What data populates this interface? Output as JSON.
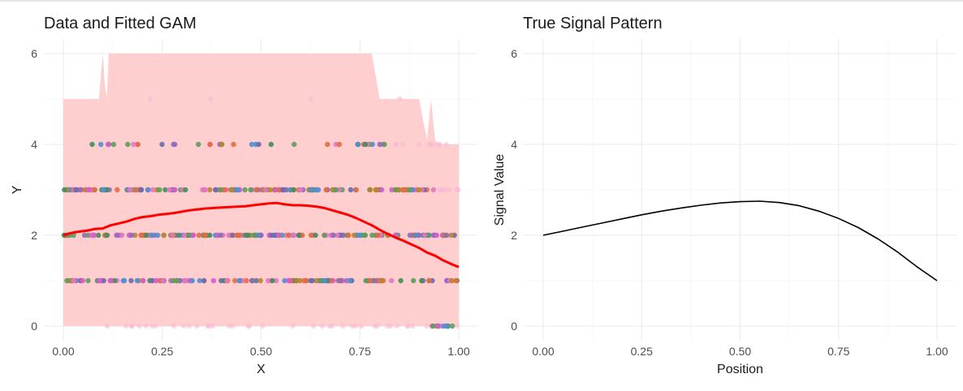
{
  "chart_data": [
    {
      "type": "scatter",
      "title": "Data and Fitted GAM",
      "xlabel": "X",
      "ylabel": "Y",
      "xlim": [
        0,
        1
      ],
      "ylim": [
        0,
        6
      ],
      "x_ticks": [
        "0.00",
        "0.25",
        "0.50",
        "0.75",
        "1.00"
      ],
      "y_ticks": [
        "0",
        "2",
        "4",
        "6"
      ],
      "grid": true,
      "legend": "none",
      "colors": {
        "fit_line": "#ff0000",
        "band": "#ffcccc"
      },
      "point_palette": [
        "#4e8fd4",
        "#d95ccb",
        "#5a9e5a",
        "#e76b3d",
        "#3f8f5c",
        "#b8862b",
        "#8e6bbf",
        "#e377c2",
        "#6a6ab0"
      ],
      "point_levels": [
        {
          "y": 0,
          "n": 40,
          "x_range": [
            0.0,
            1.0
          ],
          "faint": true
        },
        {
          "y": 0,
          "n": 14,
          "x_range": [
            0.91,
            1.0
          ],
          "faint": false
        },
        {
          "y": 1,
          "n": 150,
          "x_range": [
            0.0,
            1.0
          ],
          "faint": false
        },
        {
          "y": 2,
          "n": 180,
          "x_range": [
            0.0,
            1.0
          ],
          "faint": false
        },
        {
          "y": 3,
          "n": 170,
          "x_range": [
            0.0,
            0.94
          ],
          "faint": false
        },
        {
          "y": 3,
          "n": 10,
          "x_range": [
            0.94,
            1.0
          ],
          "faint": true
        },
        {
          "y": 4,
          "n": 38,
          "x_range": [
            0.05,
            0.84
          ],
          "faint": false
        },
        {
          "y": 4,
          "n": 10,
          "x_range": [
            0.84,
            0.98
          ],
          "faint": true
        },
        {
          "y": 5,
          "n": 4,
          "x_range": [
            0.0,
            0.9
          ],
          "faint": true
        }
      ],
      "series": [
        {
          "type": "band",
          "x": [
            0.0,
            0.09,
            0.1,
            0.105,
            0.11,
            0.115,
            0.12,
            0.125,
            0.78,
            0.8,
            0.81,
            0.9,
            0.91,
            0.92,
            0.93,
            0.94,
            0.95,
            1.0
          ],
          "lower": [
            0,
            0,
            0,
            0,
            0,
            0,
            0,
            0,
            0,
            0,
            0,
            0,
            0,
            0,
            0,
            0,
            0,
            0
          ],
          "upper": [
            5.0,
            5.0,
            6.0,
            5.3,
            5.0,
            6.0,
            6.0,
            6.0,
            6.0,
            5.0,
            5.0,
            5.0,
            4.5,
            4.1,
            5.0,
            4.1,
            4.0,
            4.0
          ]
        },
        {
          "type": "line",
          "x": [
            0.0,
            0.02,
            0.04,
            0.06,
            0.08,
            0.1,
            0.12,
            0.14,
            0.16,
            0.18,
            0.2,
            0.22,
            0.24,
            0.26,
            0.28,
            0.3,
            0.32,
            0.34,
            0.36,
            0.38,
            0.4,
            0.42,
            0.44,
            0.46,
            0.48,
            0.5,
            0.52,
            0.54,
            0.56,
            0.58,
            0.6,
            0.62,
            0.64,
            0.66,
            0.68,
            0.7,
            0.72,
            0.74,
            0.76,
            0.78,
            0.8,
            0.82,
            0.84,
            0.86,
            0.88,
            0.9,
            0.92,
            0.94,
            0.96,
            0.98,
            1.0
          ],
          "y": [
            2.0,
            2.05,
            2.08,
            2.1,
            2.14,
            2.15,
            2.22,
            2.26,
            2.3,
            2.36,
            2.4,
            2.42,
            2.45,
            2.47,
            2.49,
            2.52,
            2.55,
            2.57,
            2.59,
            2.6,
            2.61,
            2.62,
            2.63,
            2.64,
            2.66,
            2.68,
            2.7,
            2.71,
            2.68,
            2.66,
            2.66,
            2.65,
            2.63,
            2.6,
            2.55,
            2.5,
            2.45,
            2.38,
            2.3,
            2.22,
            2.12,
            2.03,
            1.95,
            1.88,
            1.8,
            1.72,
            1.62,
            1.55,
            1.45,
            1.37,
            1.3
          ]
        }
      ]
    },
    {
      "type": "line",
      "title": "True Signal Pattern",
      "xlabel": "Position",
      "ylabel": "Signal Value",
      "xlim": [
        0,
        1
      ],
      "ylim": [
        0,
        6
      ],
      "x_ticks": [
        "0.00",
        "0.25",
        "0.50",
        "0.75",
        "1.00"
      ],
      "y_ticks": [
        "0",
        "2",
        "4",
        "6"
      ],
      "grid": true,
      "legend": "none",
      "colors": {
        "line": "#000000"
      },
      "series": [
        {
          "x": [
            0.0,
            0.05,
            0.1,
            0.15,
            0.2,
            0.25,
            0.3,
            0.35,
            0.4,
            0.45,
            0.5,
            0.55,
            0.6,
            0.65,
            0.7,
            0.75,
            0.8,
            0.85,
            0.9,
            0.95,
            1.0
          ],
          "y": [
            2.0,
            2.09,
            2.18,
            2.27,
            2.36,
            2.45,
            2.53,
            2.6,
            2.66,
            2.71,
            2.74,
            2.75,
            2.72,
            2.65,
            2.53,
            2.37,
            2.17,
            1.92,
            1.63,
            1.3,
            1.0
          ]
        }
      ]
    }
  ]
}
